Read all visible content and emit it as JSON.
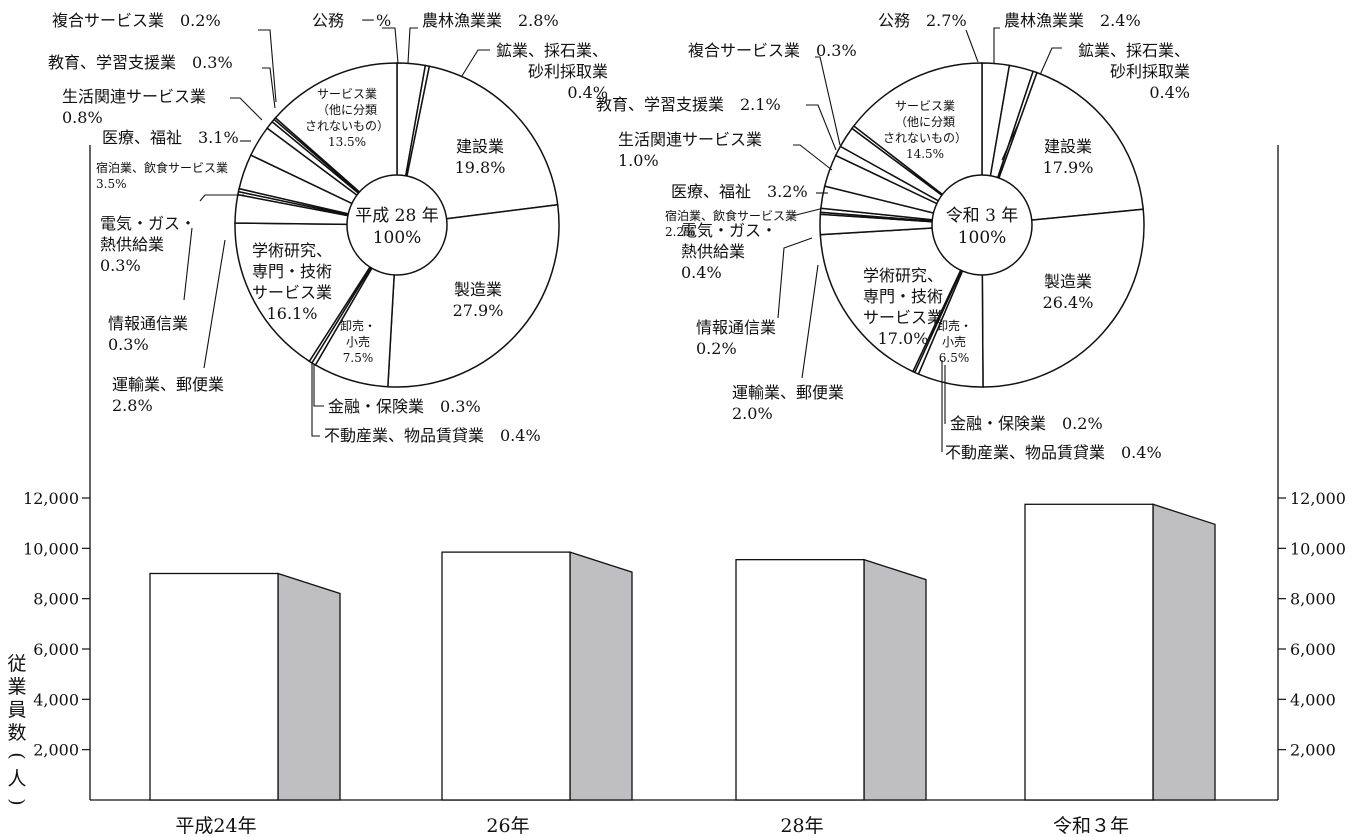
{
  "chart_data": [
    {
      "type": "pie",
      "center_label": [
        "平成 28 年",
        "100%"
      ],
      "slices": [
        {
          "name": "公務",
          "value": 0.0,
          "label": [
            "公務　－%"
          ]
        },
        {
          "name": "農林漁業業",
          "value": 2.8,
          "label": [
            "農林漁業業　2.8%"
          ]
        },
        {
          "name": "鉱業、採石業、砂利採取業",
          "value": 0.4,
          "label": [
            "鉱業、採石業、",
            "砂利採取業",
            "0.4%"
          ]
        },
        {
          "name": "建設業",
          "value": 19.8,
          "label": [
            "建設業",
            "19.8%"
          ]
        },
        {
          "name": "製造業",
          "value": 27.9,
          "label": [
            "製造業",
            "27.9%"
          ]
        },
        {
          "name": "卸売・小売",
          "value": 7.5,
          "label": [
            "卸売・",
            "小売",
            "7.5%"
          ]
        },
        {
          "name": "不動産業、物品賃貸業",
          "value": 0.4,
          "label": [
            "不動産業、物品賃貸業　0.4%"
          ]
        },
        {
          "name": "金融・保険業",
          "value": 0.3,
          "label": [
            "金融・保険業　0.3%"
          ]
        },
        {
          "name": "学術研究、専門・技術サービス業",
          "value": 16.1,
          "label": [
            "学術研究、",
            "専門・技術",
            "サービス業",
            "16.1%"
          ]
        },
        {
          "name": "運輸業、郵便業",
          "value": 2.8,
          "label": [
            "運輸業、郵便業",
            "2.8%"
          ]
        },
        {
          "name": "情報通信業",
          "value": 0.3,
          "label": [
            "情報通信業",
            "0.3%"
          ]
        },
        {
          "name": "電気・ガス・熱供給業",
          "value": 0.3,
          "label": [
            "電気・ガス・",
            "熱供給業",
            "0.3%"
          ]
        },
        {
          "name": "宿泊業、飲食サービス業",
          "value": 3.5,
          "label": [
            "宿泊業、飲食サービス業",
            "3.5%"
          ]
        },
        {
          "name": "医療、福祉",
          "value": 3.1,
          "label": [
            "医療、福祉　3.1%"
          ]
        },
        {
          "name": "生活関連サービス業",
          "value": 0.8,
          "label": [
            "生活関連サービス業",
            "0.8%"
          ]
        },
        {
          "name": "教育、学習支援業",
          "value": 0.3,
          "label": [
            "教育、学習支援業　0.3%"
          ]
        },
        {
          "name": "複合サービス業",
          "value": 0.2,
          "label": [
            "複合サービス業　0.2%"
          ]
        },
        {
          "name": "サービス業（他に分類されないもの）",
          "value": 13.5,
          "label": [
            "サービス業",
            "（他に分類",
            "されないもの）",
            "13.5%"
          ]
        }
      ]
    },
    {
      "type": "pie",
      "center_label": [
        "令和 3 年",
        "100%"
      ],
      "slices": [
        {
          "name": "公務",
          "value": 2.7,
          "label": [
            "公務　2.7%"
          ]
        },
        {
          "name": "農林漁業業",
          "value": 2.4,
          "label": [
            "農林漁業業　2.4%"
          ]
        },
        {
          "name": "鉱業、採石業、砂利採取業",
          "value": 0.4,
          "label": [
            "鉱業、採石業、",
            "砂利採取業",
            "0.4%"
          ]
        },
        {
          "name": "建設業",
          "value": 17.9,
          "label": [
            "建設業",
            "17.9%"
          ]
        },
        {
          "name": "製造業",
          "value": 26.4,
          "label": [
            "製造業",
            "26.4%"
          ]
        },
        {
          "name": "卸売・小売",
          "value": 6.5,
          "label": [
            "卸売・",
            "小売",
            "6.5%"
          ]
        },
        {
          "name": "不動産業、物品賃貸業",
          "value": 0.4,
          "label": [
            "不動産業、物品賃貸業　0.4%"
          ]
        },
        {
          "name": "金融・保険業",
          "value": 0.2,
          "label": [
            "金融・保険業　0.2%"
          ]
        },
        {
          "name": "学術研究、専門・技術サービス業",
          "value": 17.0,
          "label": [
            "学術研究、",
            "専門・技術",
            "サービス業",
            "17.0%"
          ]
        },
        {
          "name": "運輸業、郵便業",
          "value": 2.0,
          "label": [
            "運輸業、郵便業",
            "2.0%"
          ]
        },
        {
          "name": "情報通信業",
          "value": 0.2,
          "label": [
            "情報通信業",
            "0.2%"
          ]
        },
        {
          "name": "電気・ガス・熱供給業",
          "value": 0.4,
          "label": [
            "電気・ガス・",
            "熱供給業",
            "0.4%"
          ]
        },
        {
          "name": "宿泊業、飲食サービス業",
          "value": 2.2,
          "label": [
            "宿泊業、飲食サービス業",
            "2.2%"
          ]
        },
        {
          "name": "医療、福祉",
          "value": 3.2,
          "label": [
            "医療、福祉　3.2%"
          ]
        },
        {
          "name": "生活関連サービス業",
          "value": 1.0,
          "label": [
            "生活関連サービス業",
            "1.0%"
          ]
        },
        {
          "name": "教育、学習支援業",
          "value": 2.1,
          "label": [
            "教育、学習支援業　2.1%"
          ]
        },
        {
          "name": "複合サービス業",
          "value": 0.3,
          "label": [
            "複合サービス業　0.3%"
          ]
        },
        {
          "name": "サービス業（他に分類されないもの）",
          "value": 14.5,
          "label": [
            "サービス業",
            "（他に分類",
            "されないもの）",
            "14.5%"
          ]
        }
      ]
    },
    {
      "type": "bar",
      "style": "3d",
      "categories": [
        "平成24年",
        "26年",
        "28年",
        "令和３年"
      ],
      "values": [
        9000,
        9850,
        9550,
        11750
      ],
      "ylabel": "従業員数(人)",
      "ylim": [
        0,
        12000
      ],
      "yticks": [
        2000,
        4000,
        6000,
        8000,
        10000,
        12000
      ],
      "ytick_labels": [
        "2,000",
        "4,000",
        "6,000",
        "8,000",
        "10,000",
        "12,000"
      ],
      "grid": false,
      "legend": "none",
      "colors": {
        "bar_front": "#ffffff",
        "bar_side": "#bfbfc2",
        "line": "#111111"
      }
    }
  ]
}
